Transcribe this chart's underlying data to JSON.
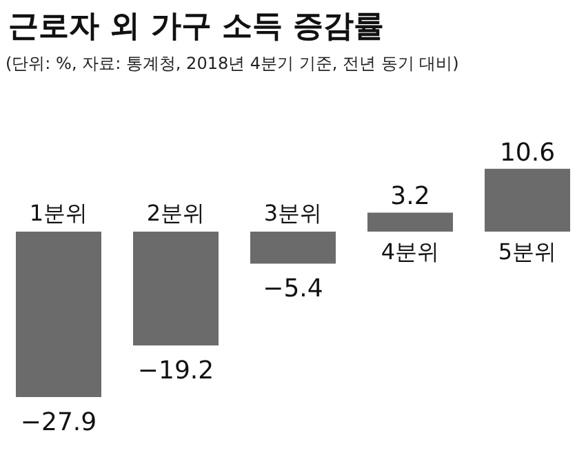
{
  "chart_data": {
    "type": "bar",
    "title": "근로자 외 가구 소득 증감률",
    "subtitle": "(단위: %, 자료: 통계청, 2018년 4분기 기준, 전년 동기 대비)",
    "categories": [
      "1분위",
      "2분위",
      "3분위",
      "4분위",
      "5분위"
    ],
    "values": [
      -27.9,
      -19.2,
      -5.4,
      3.2,
      10.6
    ],
    "color": "#6b6b6b",
    "data_labels": true
  }
}
